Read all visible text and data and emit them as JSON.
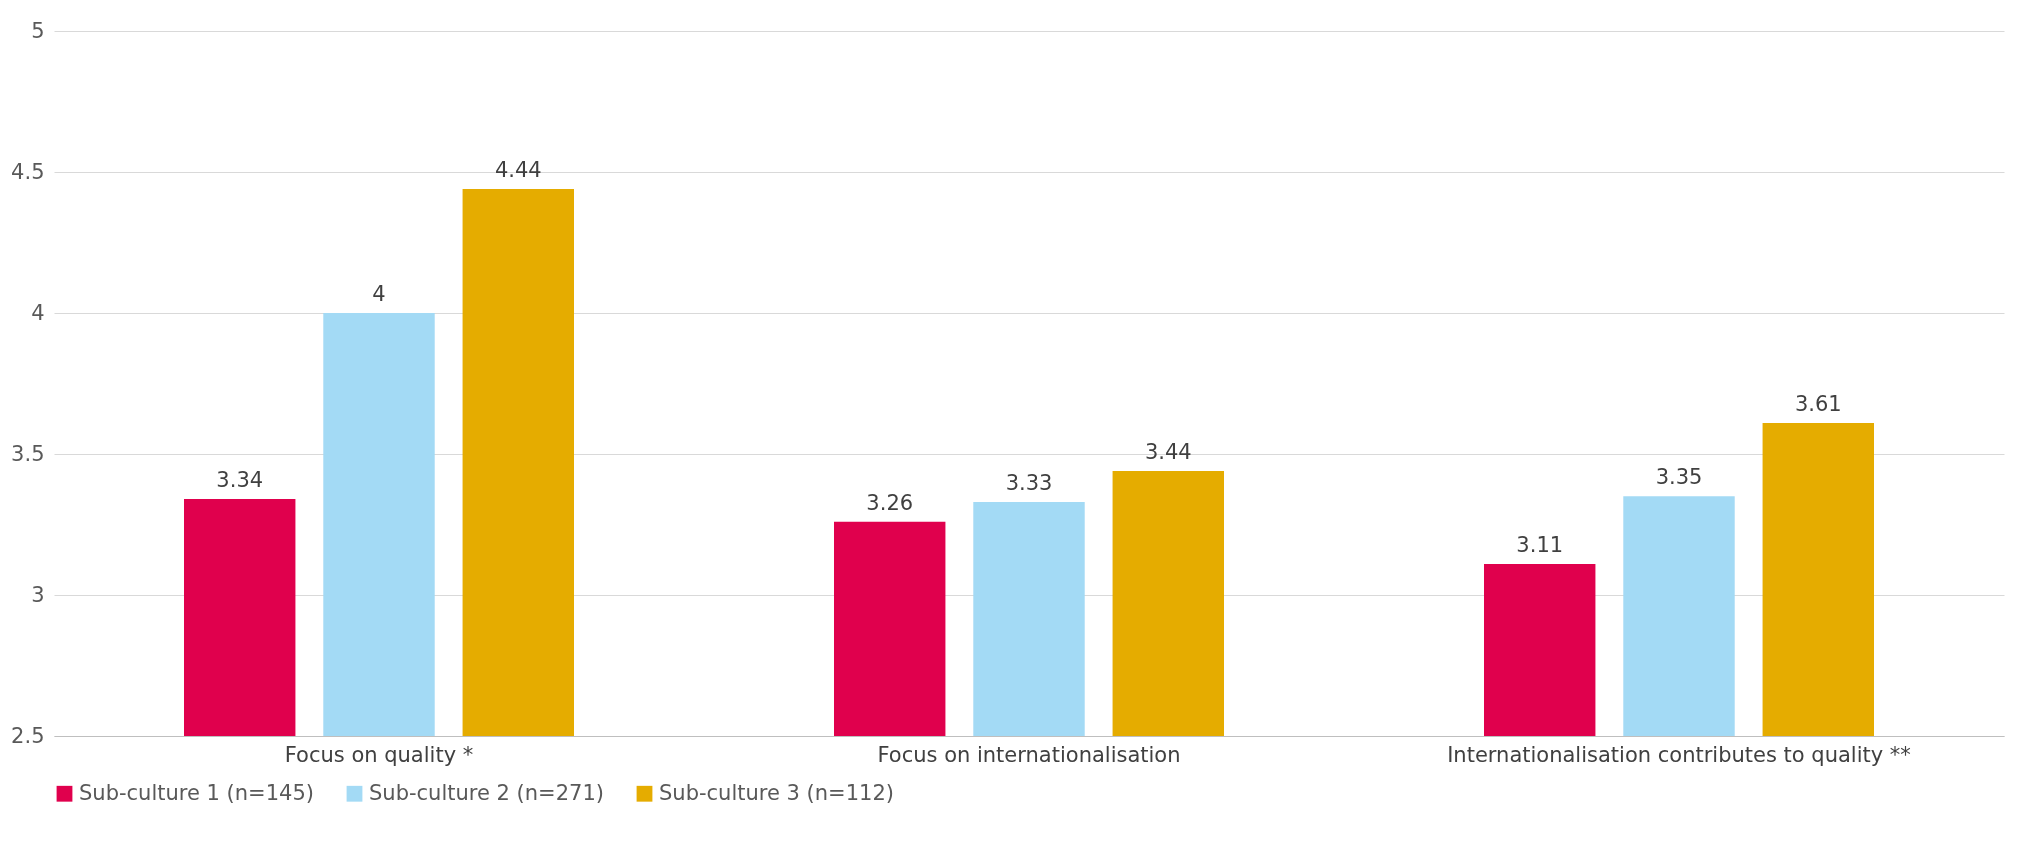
{
  "chart_data": {
    "type": "bar",
    "categories": [
      "Focus on quality *",
      "Focus on internationalisation",
      "Internationalisation contributes to quality **"
    ],
    "series": [
      {
        "name": "Sub-culture 1 (n=145)",
        "color": "#e0004d",
        "values": [
          3.34,
          3.26,
          3.11
        ]
      },
      {
        "name": "Sub-culture 2 (n=271)",
        "color": "#a3daf5",
        "values": [
          4,
          3.33,
          3.35
        ]
      },
      {
        "name": "Sub-culture 3 (n=112)",
        "color": "#e5ac00",
        "values": [
          4.44,
          3.44,
          3.61
        ]
      }
    ],
    "ylim": [
      2.5,
      5
    ],
    "yticks": [
      2.5,
      3,
      3.5,
      4,
      4.5,
      5
    ],
    "grid": "y",
    "legend": "bottom",
    "data_labels": true
  }
}
